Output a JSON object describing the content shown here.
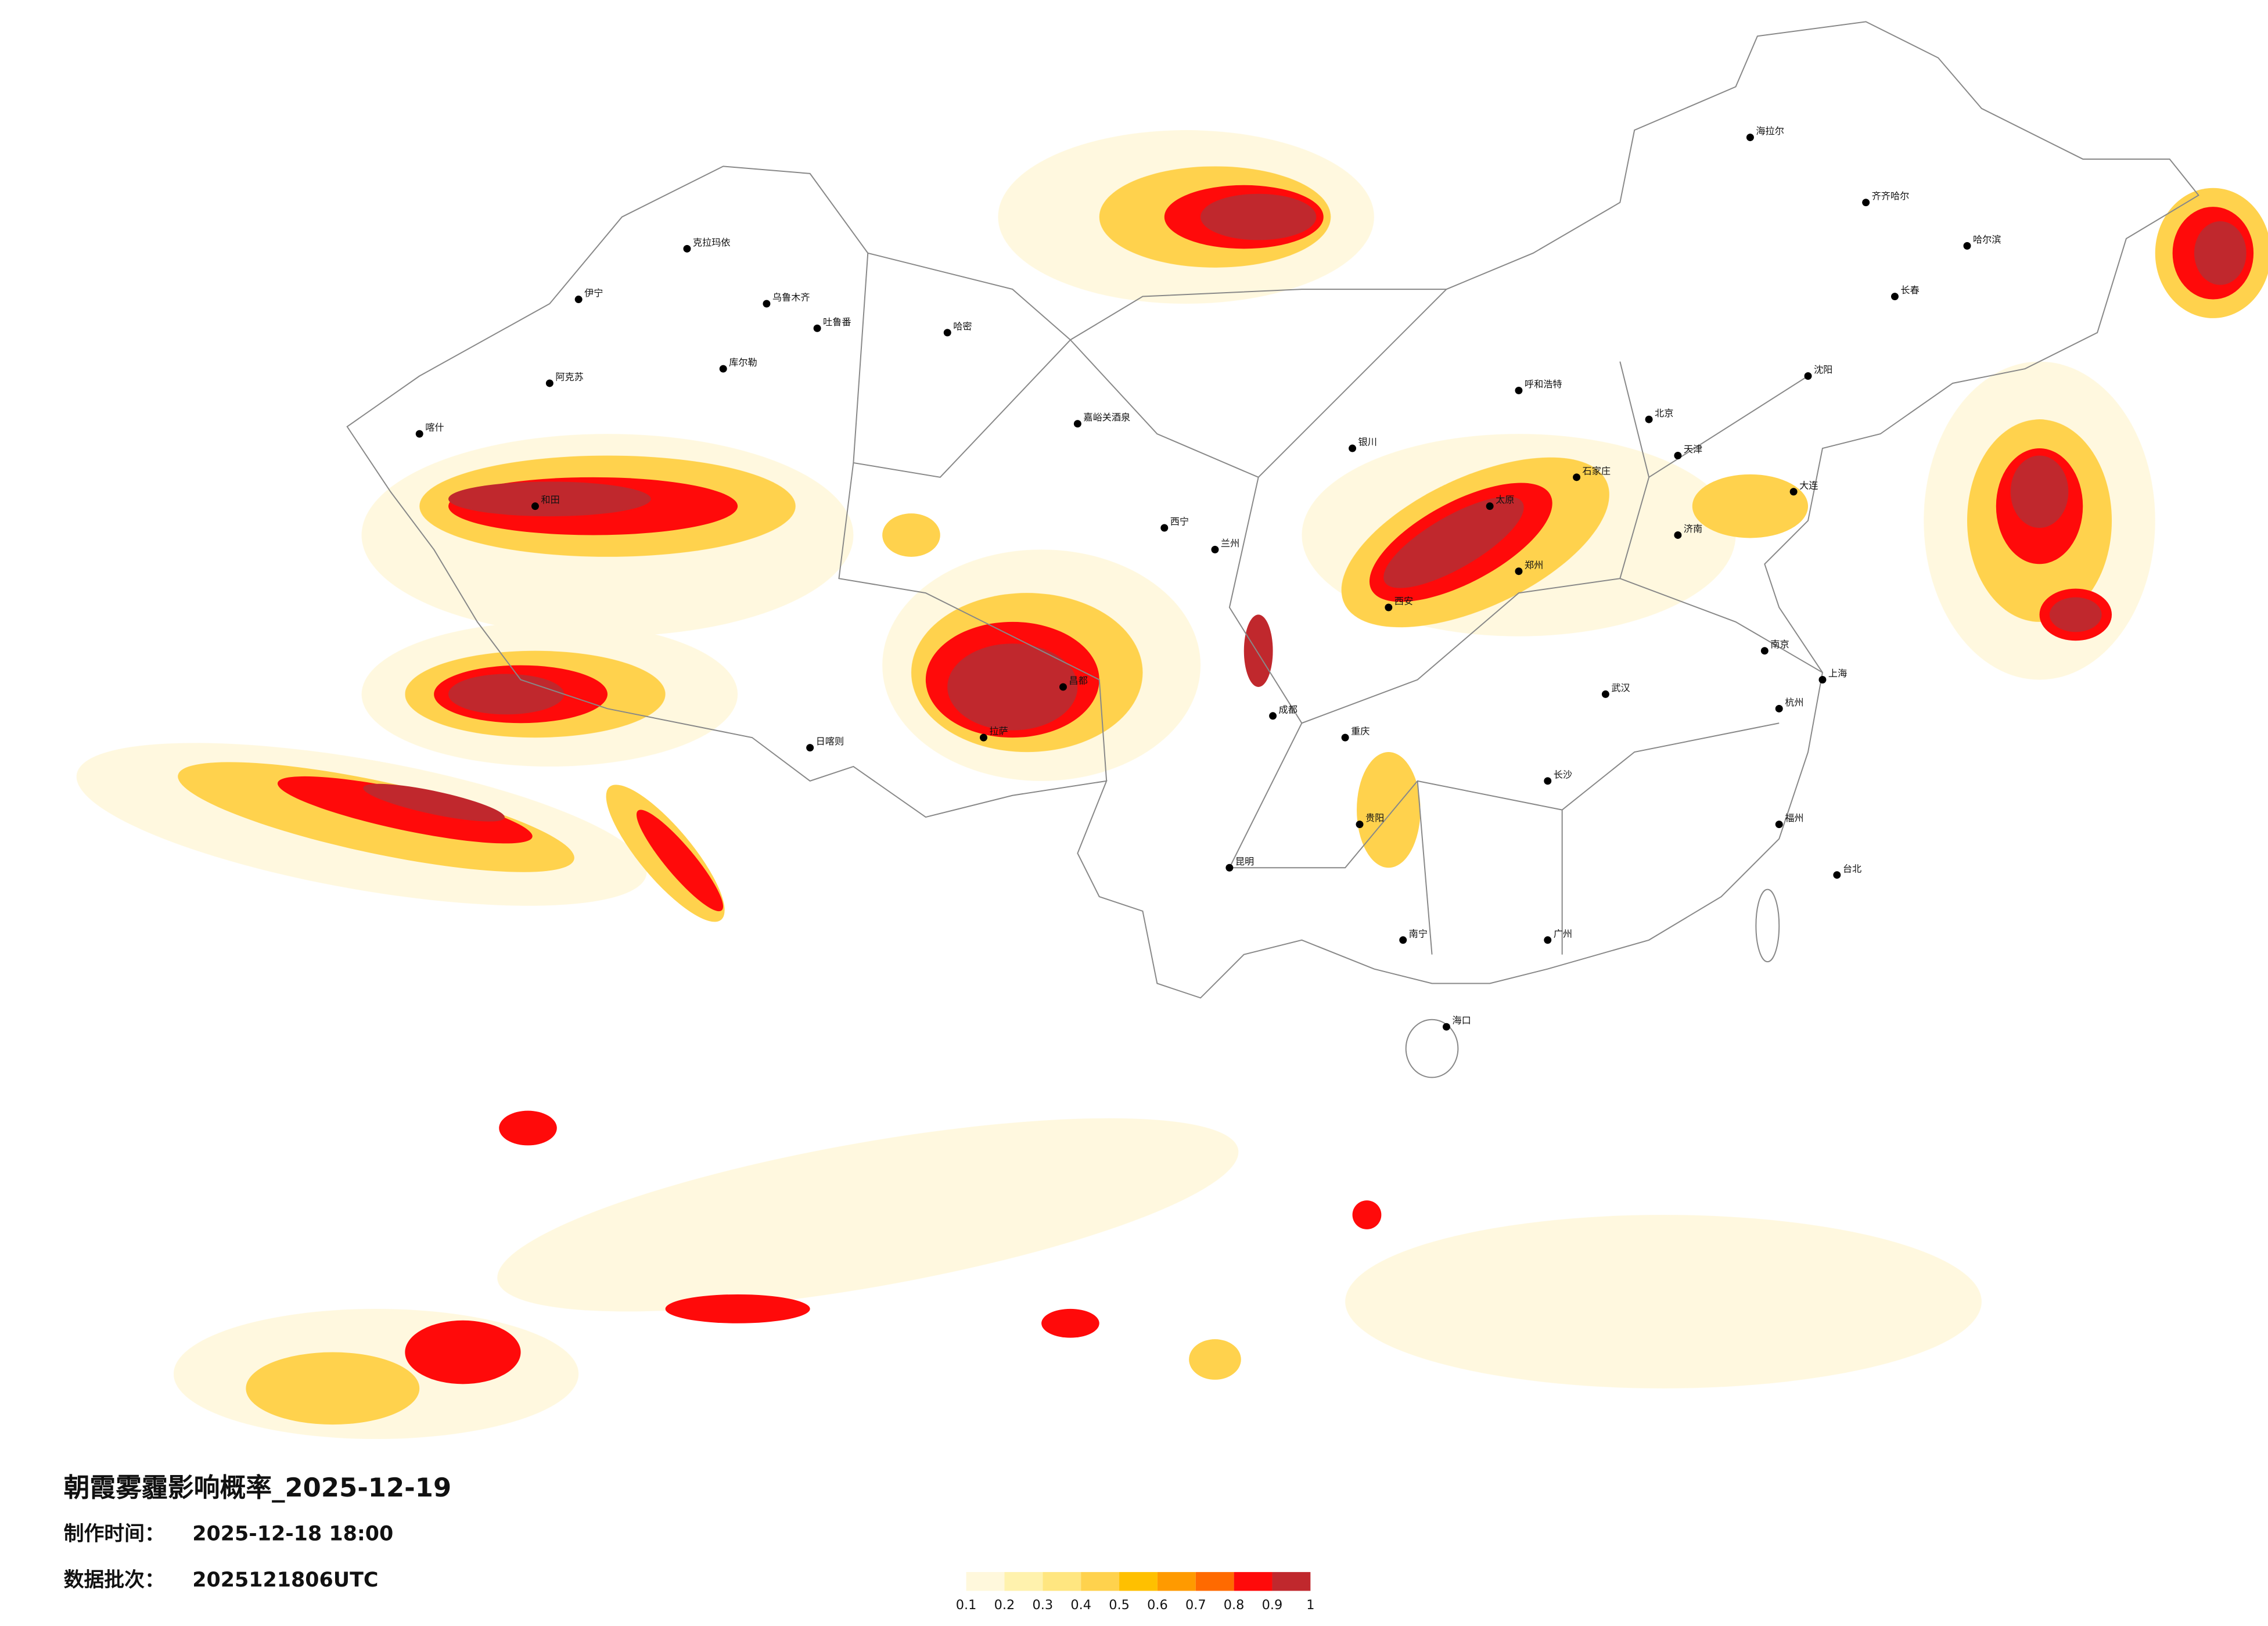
{
  "map": {
    "title": "朝霞雾霾影响概率_2025-12-19",
    "made_label": "制作时间：",
    "made_time": "2025-12-18 18:00",
    "batch_label": "数据批次：",
    "batch": "2025121806UTC",
    "legend": {
      "colors": [
        "#fff8dc",
        "#fff2ad",
        "#ffe680",
        "#ffd24d",
        "#ffc000",
        "#ff9a00",
        "#ff6a00",
        "#ff0a0a",
        "#c0282d"
      ],
      "ticks": [
        0.1,
        0.2,
        0.3,
        0.4,
        0.5,
        0.6,
        0.7,
        0.8,
        0.9,
        1
      ]
    },
    "cities": [
      "乌鲁木齐",
      "克拉玛依",
      "伊宁",
      "阿克苏",
      "喀什",
      "哈密",
      "库尔勒",
      "吐鲁番",
      "和田",
      "嘉峪关酒泉",
      "西宁",
      "兰州",
      "拉萨",
      "日喀则",
      "昌都",
      "成都",
      "重庆",
      "昆明",
      "贵阳",
      "南宁",
      "广州",
      "长沙",
      "武汉",
      "郑州",
      "西安",
      "北京",
      "天津",
      "石家庄",
      "太原",
      "呼和浩特",
      "沈阳",
      "长春",
      "哈尔滨",
      "济南",
      "南京",
      "上海",
      "杭州",
      "福州",
      "台北",
      "海口",
      "银川",
      "海拉尔",
      "齐齐哈尔",
      "大连"
    ]
  }
}
